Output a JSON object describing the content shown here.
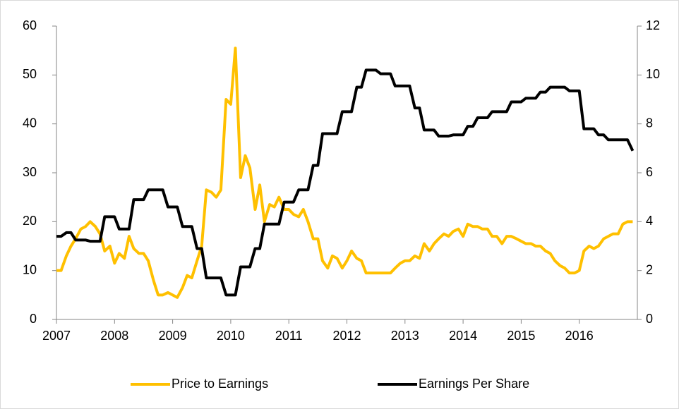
{
  "chart_data": {
    "type": "line",
    "xlim": [
      2007,
      2017
    ],
    "xticks": [
      2007,
      2008,
      2009,
      2010,
      2011,
      2012,
      2013,
      2014,
      2015,
      2016
    ],
    "ylim": [
      0,
      60
    ],
    "yticks": [
      0,
      10,
      20,
      30,
      40,
      50,
      60
    ],
    "y2lim": [
      0,
      12
    ],
    "y2ticks": [
      0,
      2,
      4,
      6,
      8,
      10,
      12
    ],
    "legend": "bottom",
    "series": [
      {
        "name": "Price to Earnings",
        "color": "#ffc000",
        "x": [
          2007.0,
          2007.08,
          2007.17,
          2007.25,
          2007.33,
          2007.42,
          2007.5,
          2007.58,
          2007.67,
          2007.75,
          2007.83,
          2007.92,
          2008.0,
          2008.08,
          2008.17,
          2008.25,
          2008.33,
          2008.42,
          2008.5,
          2008.58,
          2008.67,
          2008.75,
          2008.83,
          2008.92,
          2009.0,
          2009.08,
          2009.17,
          2009.25,
          2009.33,
          2009.42,
          2009.5,
          2009.58,
          2009.67,
          2009.75,
          2009.83,
          2009.92,
          2010.0,
          2010.08,
          2010.17,
          2010.25,
          2010.33,
          2010.42,
          2010.5,
          2010.58,
          2010.67,
          2010.75,
          2010.83,
          2010.92,
          2011.0,
          2011.08,
          2011.17,
          2011.25,
          2011.33,
          2011.42,
          2011.5,
          2011.58,
          2011.67,
          2011.75,
          2011.83,
          2011.92,
          2012.0,
          2012.08,
          2012.17,
          2012.25,
          2012.33,
          2012.42,
          2012.5,
          2012.58,
          2012.67,
          2012.75,
          2012.83,
          2012.92,
          2013.0,
          2013.08,
          2013.17,
          2013.25,
          2013.33,
          2013.42,
          2013.5,
          2013.58,
          2013.67,
          2013.75,
          2013.83,
          2013.92,
          2014.0,
          2014.08,
          2014.17,
          2014.25,
          2014.33,
          2014.42,
          2014.5,
          2014.58,
          2014.67,
          2014.75,
          2014.83,
          2014.92,
          2015.0,
          2015.08,
          2015.17,
          2015.25,
          2015.33,
          2015.42,
          2015.5,
          2015.58,
          2015.67,
          2015.75,
          2015.83,
          2015.92,
          2016.0,
          2016.08,
          2016.17,
          2016.25,
          2016.33,
          2016.42,
          2016.5,
          2016.58,
          2016.67,
          2016.75,
          2016.83,
          2016.92
        ],
        "values": [
          10,
          10,
          13,
          15,
          16.5,
          18.5,
          19,
          20,
          19,
          17.5,
          14,
          15,
          11.5,
          13.5,
          12.5,
          17,
          14.5,
          13.5,
          13.5,
          12,
          8,
          5,
          5,
          5.5,
          5,
          4.5,
          6.5,
          9,
          8.5,
          12,
          15,
          26.5,
          26,
          25,
          26.5,
          45,
          44,
          55.5,
          29,
          33.5,
          31,
          22.5,
          27.5,
          20,
          23.5,
          23,
          25,
          22.5,
          22.5,
          21.5,
          21,
          22.5,
          20,
          16.5,
          16.5,
          12,
          10.5,
          13,
          12.5,
          10.5,
          12,
          14,
          12.5,
          12,
          9.5,
          9.5,
          9.5,
          9.5,
          9.5,
          9.5,
          10.5,
          11.5,
          12,
          12,
          13,
          12.5,
          15.5,
          14,
          15.5,
          16.5,
          17.5,
          17,
          18,
          18.5,
          17,
          19.5,
          19,
          19,
          18.5,
          18.5,
          17,
          17,
          15.5,
          17,
          17,
          16.5,
          16,
          15.5,
          15.5,
          15,
          15,
          14,
          13.5,
          12,
          11,
          10.5,
          9.5,
          9.5,
          10,
          14,
          15,
          14.5,
          15,
          16.5,
          17,
          17.5,
          17.5,
          19.5,
          20,
          20
        ]
      },
      {
        "name": "Earnings Per Share",
        "color": "#000000",
        "axis": "y2",
        "x": [
          2007.0,
          2007.08,
          2007.17,
          2007.25,
          2007.33,
          2007.5,
          2007.58,
          2007.75,
          2007.83,
          2008.0,
          2008.08,
          2008.25,
          2008.33,
          2008.5,
          2008.58,
          2008.83,
          2008.92,
          2009.08,
          2009.17,
          2009.33,
          2009.42,
          2009.5,
          2009.58,
          2009.83,
          2009.92,
          2010.08,
          2010.17,
          2010.33,
          2010.42,
          2010.5,
          2010.58,
          2010.83,
          2010.92,
          2011.08,
          2011.17,
          2011.33,
          2011.42,
          2011.5,
          2011.58,
          2011.83,
          2011.92,
          2012.08,
          2012.17,
          2012.25,
          2012.33,
          2012.5,
          2012.58,
          2012.75,
          2012.83,
          2013.08,
          2013.17,
          2013.25,
          2013.33,
          2013.5,
          2013.58,
          2013.75,
          2013.83,
          2014.0,
          2014.08,
          2014.17,
          2014.25,
          2014.42,
          2014.5,
          2014.75,
          2014.83,
          2015.0,
          2015.08,
          2015.25,
          2015.33,
          2015.42,
          2015.5,
          2015.75,
          2015.83,
          2016.0,
          2016.08,
          2016.25,
          2016.33,
          2016.42,
          2016.5,
          2016.83,
          2016.92
        ],
        "values": [
          3.4,
          3.4,
          3.55,
          3.55,
          3.25,
          3.25,
          3.2,
          3.2,
          4.2,
          4.2,
          3.7,
          3.7,
          4.9,
          4.9,
          5.3,
          5.3,
          4.6,
          4.6,
          3.8,
          3.8,
          2.9,
          2.9,
          1.7,
          1.7,
          1.0,
          1.0,
          2.15,
          2.15,
          2.9,
          2.9,
          3.9,
          3.9,
          4.8,
          4.8,
          5.3,
          5.3,
          6.3,
          6.3,
          7.6,
          7.6,
          8.5,
          8.5,
          9.5,
          9.5,
          10.2,
          10.2,
          10.05,
          10.05,
          9.55,
          9.55,
          8.65,
          8.65,
          7.75,
          7.75,
          7.5,
          7.5,
          7.55,
          7.55,
          7.9,
          7.9,
          8.25,
          8.25,
          8.5,
          8.5,
          8.9,
          8.9,
          9.05,
          9.05,
          9.3,
          9.3,
          9.5,
          9.5,
          9.35,
          9.35,
          7.8,
          7.8,
          7.55,
          7.55,
          7.35,
          7.35,
          6.9
        ]
      }
    ]
  }
}
